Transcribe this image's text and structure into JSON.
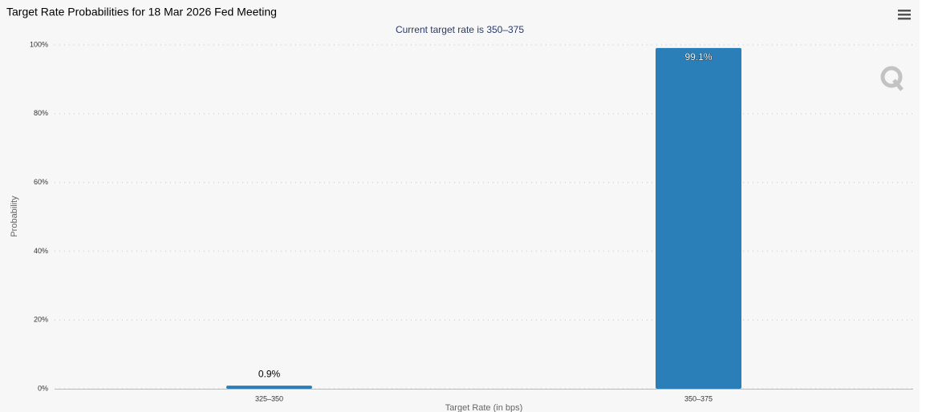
{
  "chart_data": {
    "type": "bar",
    "title": "Target Rate Probabilities for 18 Mar 2026 Fed Meeting",
    "subtitle": "Current target rate is 350–375",
    "x_label": "Target Rate (in bps)",
    "y_label": "Probability",
    "categories": [
      "325–350",
      "350–375"
    ],
    "values": [
      0.9,
      99.1
    ],
    "value_labels": [
      "0.9%",
      "99.1%"
    ],
    "color": "#2a7fb8",
    "ylim": [
      0,
      100
    ],
    "yticks": [
      {
        "value": 0,
        "label": "0%"
      },
      {
        "value": 20,
        "label": "20%"
      },
      {
        "value": 40,
        "label": "40%"
      },
      {
        "value": 60,
        "label": "60%"
      },
      {
        "value": 80,
        "label": "80%"
      },
      {
        "value": 100,
        "label": "100%"
      }
    ],
    "grid": true
  }
}
